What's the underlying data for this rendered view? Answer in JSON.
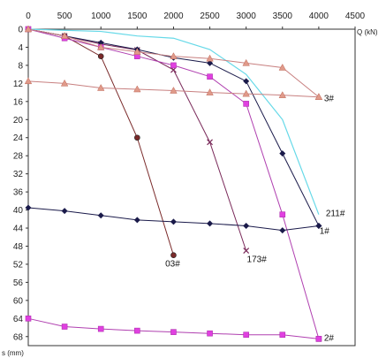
{
  "chart_data": {
    "type": "line",
    "title": "",
    "xlabel": "Q (kN)",
    "ylabel": "s (mm)",
    "xlim": [
      0,
      4500
    ],
    "ylim": [
      0,
      70
    ],
    "y_inverted": true,
    "x_axis_position": "top",
    "grid": false,
    "x_ticks": [
      "0",
      "500",
      "1000",
      "1500",
      "2000",
      "2500",
      "3000",
      "3500",
      "4000",
      "4500"
    ],
    "y_ticks": [
      "0",
      "4",
      "8",
      "12",
      "16",
      "20",
      "24",
      "28",
      "32",
      "36",
      "40",
      "44",
      "48",
      "52",
      "56",
      "60",
      "64",
      "68"
    ],
    "series": [
      {
        "name": "03#",
        "color": "#7a2a2a",
        "marker": "circle",
        "x": [
          0,
          500,
          1000,
          1500,
          2000
        ],
        "y": [
          0,
          1.5,
          6,
          24,
          50
        ]
      },
      {
        "name": "173#",
        "color": "#7a2a5a",
        "marker": "x",
        "x": [
          0,
          500,
          1000,
          1500,
          2000,
          2500,
          3000
        ],
        "y": [
          0,
          1.5,
          3.3,
          4.6,
          9,
          25,
          49
        ]
      },
      {
        "name": "1#",
        "color": "#1a1a4a",
        "marker": "diamond",
        "x": [
          0,
          1000,
          1500,
          2000,
          2500,
          3000,
          3500,
          4000
        ],
        "y": [
          0,
          3,
          4.5,
          6.3,
          7.5,
          11.5,
          27.5,
          43.5
        ]
      },
      {
        "name": "211#",
        "color": "#66d9e8",
        "marker": "none",
        "x": [
          0,
          1000,
          1500,
          2000,
          2500,
          3000,
          3500,
          4000
        ],
        "y": [
          0,
          0.5,
          1.5,
          2,
          4.5,
          10,
          20,
          41
        ]
      },
      {
        "name": "2#",
        "color": "#b040b0",
        "marker": "square",
        "x": [
          0,
          500,
          1000,
          1500,
          2000,
          2500,
          3000,
          3500,
          4000
        ],
        "y": [
          0,
          2,
          4,
          6,
          8,
          10.5,
          16.5,
          41,
          68.5
        ]
      },
      {
        "name": "3#",
        "color": "#c88080",
        "marker": "triangle",
        "x": [
          0,
          500,
          1000,
          1500,
          2000,
          2500,
          3000,
          3500,
          4000
        ],
        "y": [
          0,
          1.5,
          4,
          5,
          6,
          6.5,
          7.5,
          8.5,
          15
        ]
      },
      {
        "name": "",
        "color": "#c88080",
        "marker": "triangle",
        "x": [
          0,
          500,
          1000,
          1500,
          2000,
          2500,
          3000,
          3500,
          4000
        ],
        "y": [
          11.5,
          12,
          13,
          13.3,
          13.6,
          14,
          14.3,
          14.6,
          15
        ]
      },
      {
        "name": "",
        "color": "#1a1a4a",
        "marker": "diamond",
        "x": [
          0,
          500,
          1000,
          1500,
          2000,
          2500,
          3000,
          3500,
          4000
        ],
        "y": [
          39.5,
          40.2,
          41.2,
          42.2,
          42.6,
          43,
          43.5,
          44.5,
          43.5
        ]
      },
      {
        "name": "",
        "color": "#b040b0",
        "marker": "square",
        "x": [
          0,
          500,
          1000,
          1500,
          2000,
          2500,
          3000,
          3500,
          4000
        ],
        "y": [
          64,
          65.8,
          66.3,
          66.7,
          67,
          67.3,
          67.6,
          67.6,
          68.5
        ]
      }
    ]
  }
}
